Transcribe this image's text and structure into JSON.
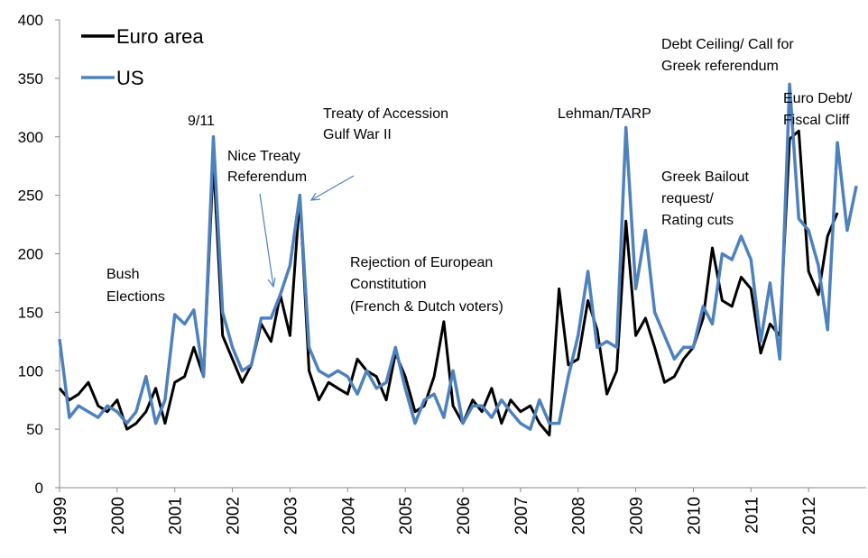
{
  "chart_data": {
    "type": "line",
    "x": [
      1999.0,
      1999.17,
      1999.33,
      1999.5,
      1999.67,
      1999.83,
      2000.0,
      2000.17,
      2000.33,
      2000.5,
      2000.67,
      2000.83,
      2001.0,
      2001.17,
      2001.33,
      2001.5,
      2001.67,
      2001.83,
      2002.0,
      2002.17,
      2002.33,
      2002.5,
      2002.67,
      2002.83,
      2003.0,
      2003.17,
      2003.33,
      2003.5,
      2003.67,
      2003.83,
      2004.0,
      2004.17,
      2004.33,
      2004.5,
      2004.67,
      2004.83,
      2005.0,
      2005.17,
      2005.33,
      2005.5,
      2005.67,
      2005.83,
      2006.0,
      2006.17,
      2006.33,
      2006.5,
      2006.67,
      2006.83,
      2007.0,
      2007.17,
      2007.33,
      2007.5,
      2007.67,
      2007.83,
      2008.0,
      2008.17,
      2008.33,
      2008.5,
      2008.67,
      2008.83,
      2009.0,
      2009.17,
      2009.33,
      2009.5,
      2009.67,
      2009.83,
      2010.0,
      2010.17,
      2010.33,
      2010.5,
      2010.67,
      2010.83,
      2011.0,
      2011.17,
      2011.33,
      2011.5,
      2011.67,
      2011.83,
      2012.0,
      2012.17,
      2012.33,
      2012.5,
      2012.67,
      2012.83
    ],
    "series": [
      {
        "name": "Euro area",
        "color": "#000000",
        "values": [
          85,
          75,
          80,
          90,
          70,
          65,
          75,
          50,
          55,
          65,
          85,
          55,
          90,
          95,
          120,
          95,
          280,
          130,
          110,
          90,
          105,
          140,
          125,
          165,
          130,
          250,
          100,
          75,
          90,
          85,
          80,
          110,
          100,
          95,
          75,
          115,
          95,
          65,
          70,
          95,
          142,
          70,
          55,
          75,
          65,
          85,
          55,
          75,
          65,
          70,
          55,
          45,
          170,
          105,
          110,
          160,
          135,
          80,
          100,
          228,
          130,
          145,
          120,
          90,
          95,
          110,
          120,
          145,
          205,
          160,
          155,
          180,
          170,
          115,
          140,
          130,
          298,
          305,
          185,
          165,
          215,
          235,
          null,
          null
        ]
      },
      {
        "name": "US",
        "color": "#4f81bd",
        "values": [
          127,
          60,
          70,
          65,
          60,
          70,
          65,
          55,
          65,
          95,
          55,
          75,
          148,
          140,
          152,
          95,
          300,
          150,
          120,
          100,
          105,
          145,
          145,
          165,
          190,
          250,
          120,
          100,
          95,
          100,
          95,
          80,
          100,
          85,
          90,
          120,
          85,
          55,
          75,
          80,
          60,
          100,
          55,
          70,
          70,
          60,
          75,
          65,
          55,
          50,
          75,
          55,
          55,
          95,
          130,
          185,
          120,
          125,
          120,
          308,
          170,
          220,
          150,
          130,
          110,
          120,
          120,
          155,
          140,
          200,
          195,
          215,
          195,
          125,
          175,
          110,
          345,
          230,
          220,
          190,
          135,
          295,
          220,
          258
        ]
      }
    ],
    "xlim": [
      1999,
      2013
    ],
    "xticks": [
      1999,
      2000,
      2001,
      2002,
      2003,
      2004,
      2005,
      2006,
      2007,
      2008,
      2009,
      2010,
      2011,
      2012
    ],
    "ylim": [
      0,
      400
    ],
    "yticks": [
      0,
      50,
      100,
      150,
      200,
      250,
      300,
      350,
      400
    ],
    "legend": "top-left",
    "annotations": [
      "Bush",
      "Elections",
      "9/11",
      "Nice Treaty",
      "Referendum",
      "Treaty  of Accession",
      "Gulf War II",
      "Rejection of European",
      "Constitution",
      "(French &  Dutch voters)",
      "Lehman/TARP",
      "Debt Ceiling/ Call for",
      "Greek referendum",
      "Greek Bailout",
      "request/",
      "Rating cuts",
      "Euro Debt/",
      "Fiscal Cliff"
    ]
  }
}
